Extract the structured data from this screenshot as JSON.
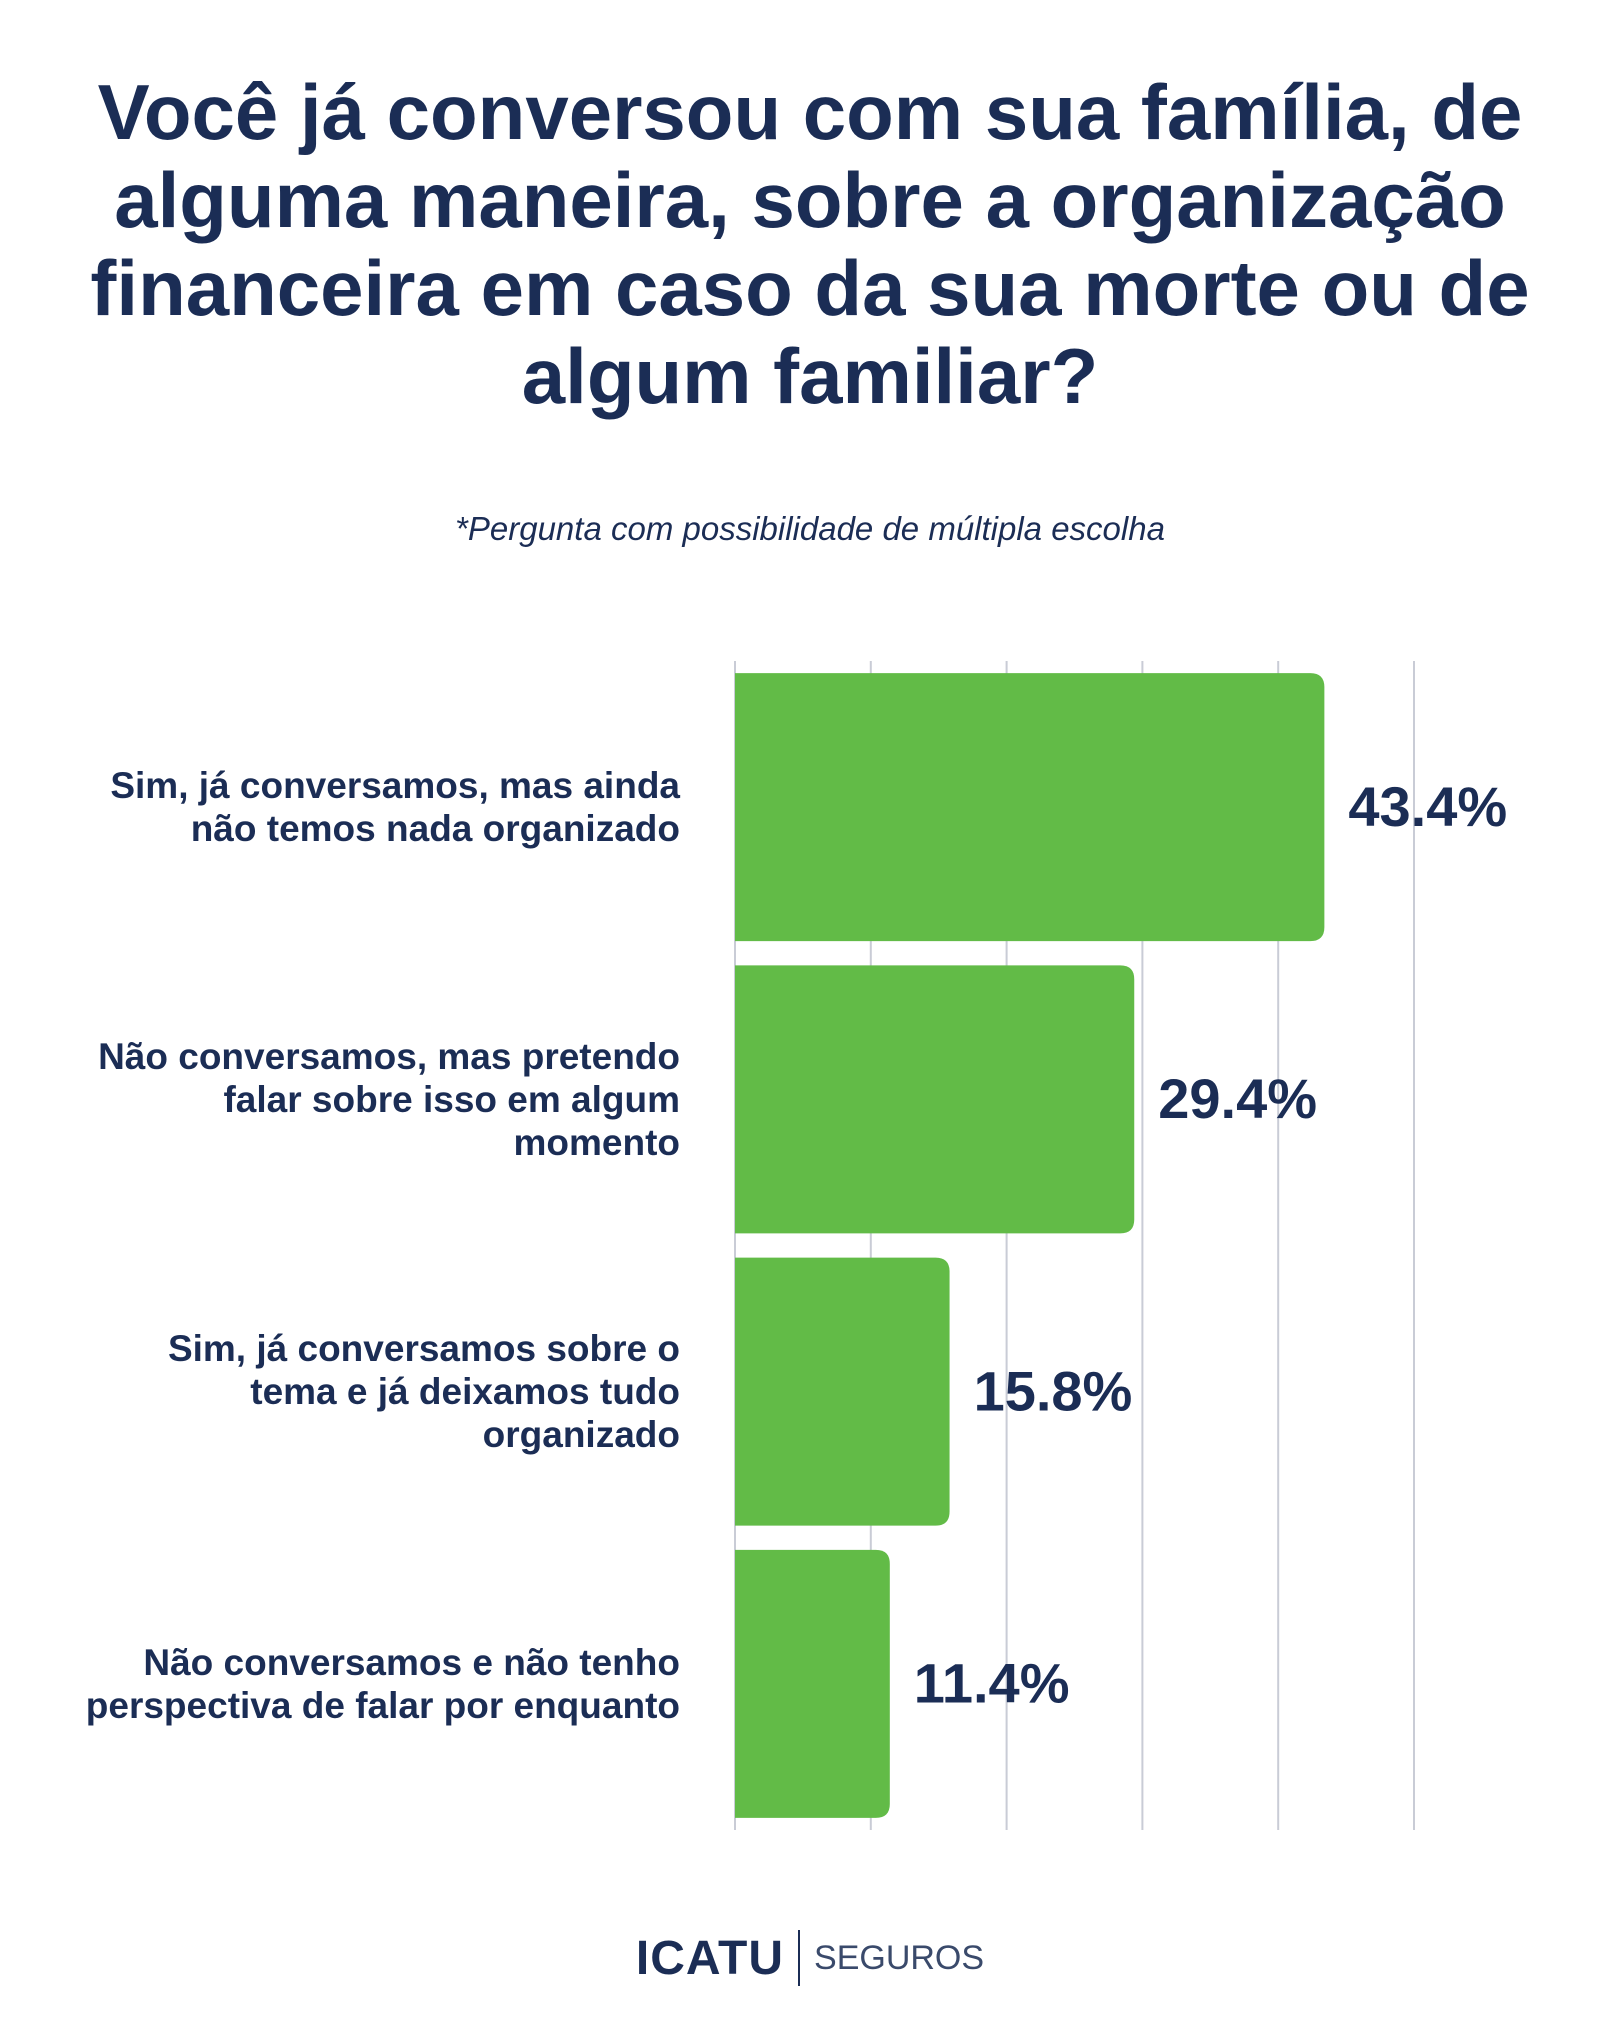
{
  "chart_data": {
    "type": "barh",
    "title": "Você já conversou com sua família, de alguma maneira, sobre a organização financeira em caso da sua morte ou de algum familiar?",
    "subtitle": "*Pergunta com possibilidade de múltipla escolha",
    "categories": [
      "Sim, já conversamos, mas ainda não temos nada organizado",
      "Não conversamos, mas pretendo falar sobre isso em algum momento",
      "Sim, já conversamos sobre o tema e já deixamos tudo organizado",
      "Não conversamos e não tenho perspectiva de falar por enquanto"
    ],
    "values": [
      43.4,
      29.4,
      15.8,
      11.4
    ],
    "value_labels": [
      "43.4%",
      "29.4%",
      "15.8%",
      "11.4%"
    ],
    "color": "#62bb47",
    "xlim": [
      0,
      50
    ],
    "xticks": [
      0,
      10,
      20,
      30,
      40,
      50
    ],
    "grid": true
  },
  "footer": {
    "brand": "ICATU",
    "tagline": "SEGUROS"
  }
}
